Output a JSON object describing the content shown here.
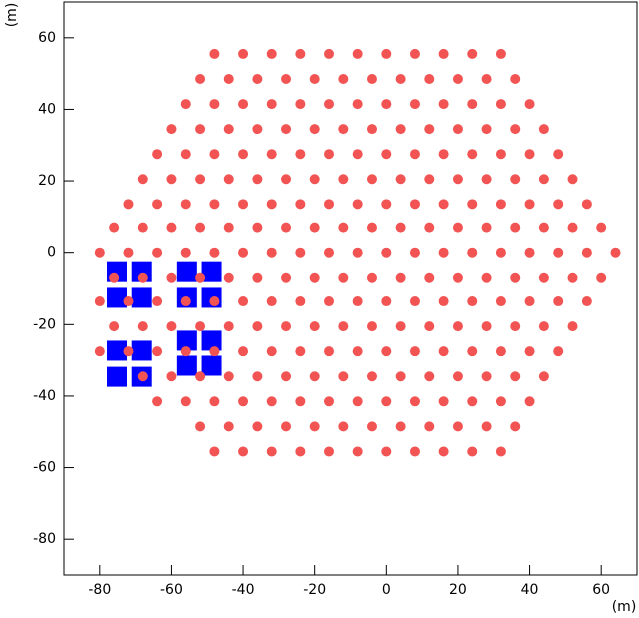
{
  "chart_data": {
    "type": "scatter",
    "x_label": "(m)",
    "y_label": "(m)",
    "xlim": [
      -90,
      70
    ],
    "ylim": [
      -90,
      70
    ],
    "xticks": [
      -80,
      -60,
      -40,
      -20,
      0,
      20,
      40,
      60
    ],
    "yticks": [
      -80,
      -60,
      -40,
      -20,
      0,
      20,
      40,
      60
    ],
    "series": [
      {
        "color": "#0000ff",
        "marker": "square",
        "x": [
          -75.2,
          -68.3,
          -75.2,
          -68.3,
          -55.7,
          -48.8,
          -55.7,
          -48.8,
          -75.2,
          -68.3,
          -75.2,
          -68.3,
          -55.7,
          -48.8,
          -55.7,
          -48.8
        ],
        "y": [
          -5.3,
          -5.3,
          -12.5,
          -12.5,
          -5.3,
          -5.3,
          -12.5,
          -12.5,
          -27.3,
          -27.3,
          -34.6,
          -34.6,
          -24.5,
          -24.5,
          -31.5,
          -31.5
        ]
      },
      {
        "color": "#f25454",
        "marker": "circle",
        "x": [
          -48,
          -40,
          -32,
          -24,
          -16,
          -8,
          0,
          8,
          16,
          24,
          32,
          -52,
          -44,
          -36,
          -28,
          -20,
          -12,
          -4,
          4,
          12,
          20,
          28,
          36,
          -56,
          -48,
          -40,
          -32,
          -24,
          -16,
          -8,
          0,
          8,
          16,
          24,
          32,
          40,
          -60,
          -52,
          -44,
          -36,
          -28,
          -20,
          -12,
          -4,
          4,
          12,
          20,
          28,
          36,
          44,
          -64,
          -56,
          -48,
          -40,
          -32,
          -24,
          -16,
          -8,
          0,
          8,
          16,
          24,
          32,
          40,
          48,
          -68,
          -60,
          -52,
          -44,
          -36,
          -28,
          -20,
          -12,
          -4,
          4,
          12,
          20,
          28,
          36,
          44,
          52,
          -72,
          -64,
          -56,
          -48,
          -40,
          -32,
          -24,
          -16,
          -8,
          0,
          8,
          16,
          24,
          32,
          40,
          48,
          56,
          -76,
          -68,
          -60,
          -52,
          -44,
          -36,
          -28,
          -20,
          -12,
          -4,
          4,
          12,
          20,
          28,
          36,
          44,
          52,
          60,
          -80,
          -72,
          -64,
          -56,
          -48,
          -40,
          -32,
          -24,
          -16,
          -8,
          0,
          8,
          16,
          24,
          32,
          40,
          48,
          56,
          64,
          -76,
          -68,
          -60,
          -52,
          -44,
          -36,
          -28,
          -20,
          -12,
          -4,
          4,
          12,
          20,
          28,
          36,
          44,
          52,
          60,
          -80,
          -72,
          -64,
          -56,
          -48,
          -40,
          -32,
          -24,
          -16,
          -8,
          0,
          8,
          16,
          24,
          32,
          40,
          48,
          56,
          -76,
          -68,
          -60,
          -52,
          -44,
          -36,
          -28,
          -20,
          -12,
          -4,
          4,
          12,
          20,
          28,
          36,
          44,
          52,
          -80,
          -72,
          -64,
          -56,
          -48,
          -40,
          -32,
          -24,
          -16,
          -8,
          0,
          8,
          16,
          24,
          32,
          40,
          48,
          -68,
          -60,
          -52,
          -44,
          -36,
          -28,
          -20,
          -12,
          -4,
          4,
          12,
          20,
          28,
          36,
          44,
          -64,
          -56,
          -48,
          -40,
          -32,
          -24,
          -16,
          -8,
          0,
          8,
          16,
          24,
          32,
          40,
          -52,
          -44,
          -36,
          -28,
          -20,
          -12,
          -4,
          4,
          12,
          20,
          28,
          36,
          -48,
          -40,
          -32,
          -24,
          -16,
          -8,
          0,
          8,
          16,
          24,
          32
        ],
        "y": [
          55.5,
          55.5,
          55.5,
          55.5,
          55.5,
          55.5,
          55.5,
          55.5,
          55.5,
          55.5,
          55.5,
          48.5,
          48.5,
          48.5,
          48.5,
          48.5,
          48.5,
          48.5,
          48.5,
          48.5,
          48.5,
          48.5,
          48.5,
          41.5,
          41.5,
          41.5,
          41.5,
          41.5,
          41.5,
          41.5,
          41.5,
          41.5,
          41.5,
          41.5,
          41.5,
          41.5,
          34.5,
          34.5,
          34.5,
          34.5,
          34.5,
          34.5,
          34.5,
          34.5,
          34.5,
          34.5,
          34.5,
          34.5,
          34.5,
          34.5,
          27.5,
          27.5,
          27.5,
          27.5,
          27.5,
          27.5,
          27.5,
          27.5,
          27.5,
          27.5,
          27.5,
          27.5,
          27.5,
          27.5,
          27.5,
          20.5,
          20.5,
          20.5,
          20.5,
          20.5,
          20.5,
          20.5,
          20.5,
          20.5,
          20.5,
          20.5,
          20.5,
          20.5,
          20.5,
          20.5,
          20.5,
          13.5,
          13.5,
          13.5,
          13.5,
          13.5,
          13.5,
          13.5,
          13.5,
          13.5,
          13.5,
          13.5,
          13.5,
          13.5,
          13.5,
          13.5,
          13.5,
          13.5,
          7,
          7,
          7,
          7,
          7,
          7,
          7,
          7,
          7,
          7,
          7,
          7,
          7,
          7,
          7,
          7,
          7,
          7,
          0,
          0,
          0,
          0,
          0,
          0,
          0,
          0,
          0,
          0,
          0,
          0,
          0,
          0,
          0,
          0,
          0,
          0,
          0,
          -7,
          -7,
          -7,
          -7,
          -7,
          -7,
          -7,
          -7,
          -7,
          -7,
          -7,
          -7,
          -7,
          -7,
          -7,
          -7,
          -7,
          -7,
          -13.5,
          -13.5,
          -13.5,
          -13.5,
          -13.5,
          -13.5,
          -13.5,
          -13.5,
          -13.5,
          -13.5,
          -13.5,
          -13.5,
          -13.5,
          -13.5,
          -13.5,
          -13.5,
          -13.5,
          -13.5,
          -20.5,
          -20.5,
          -20.5,
          -20.5,
          -20.5,
          -20.5,
          -20.5,
          -20.5,
          -20.5,
          -20.5,
          -20.5,
          -20.5,
          -20.5,
          -20.5,
          -20.5,
          -20.5,
          -20.5,
          -27.5,
          -27.5,
          -27.5,
          -27.5,
          -27.5,
          -27.5,
          -27.5,
          -27.5,
          -27.5,
          -27.5,
          -27.5,
          -27.5,
          -27.5,
          -27.5,
          -27.5,
          -27.5,
          -27.5,
          -34.5,
          -34.5,
          -34.5,
          -34.5,
          -34.5,
          -34.5,
          -34.5,
          -34.5,
          -34.5,
          -34.5,
          -34.5,
          -34.5,
          -34.5,
          -34.5,
          -34.5,
          -41.5,
          -41.5,
          -41.5,
          -41.5,
          -41.5,
          -41.5,
          -41.5,
          -41.5,
          -41.5,
          -41.5,
          -41.5,
          -41.5,
          -41.5,
          -41.5,
          -48.5,
          -48.5,
          -48.5,
          -48.5,
          -48.5,
          -48.5,
          -48.5,
          -48.5,
          -48.5,
          -48.5,
          -48.5,
          -48.5,
          -55.5,
          -55.5,
          -55.5,
          -55.5,
          -55.5,
          -55.5,
          -55.5,
          -55.5,
          -55.5,
          -55.5,
          -55.5
        ]
      }
    ]
  }
}
